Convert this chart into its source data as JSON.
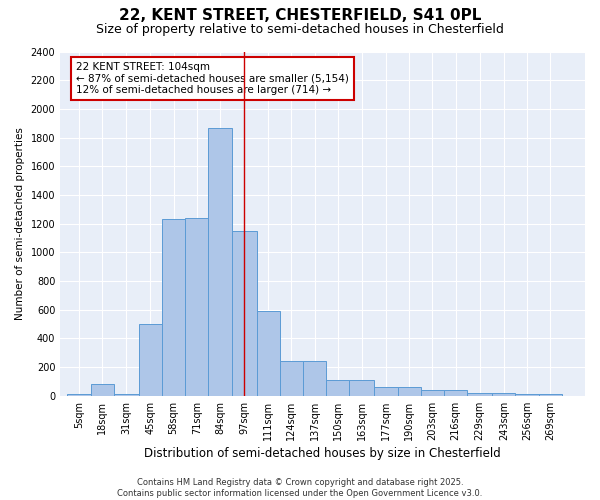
{
  "title1": "22, KENT STREET, CHESTERFIELD, S41 0PL",
  "title2": "Size of property relative to semi-detached houses in Chesterfield",
  "xlabel": "Distribution of semi-detached houses by size in Chesterfield",
  "ylabel": "Number of semi-detached properties",
  "bar_labels": [
    "5sqm",
    "18sqm",
    "31sqm",
    "45sqm",
    "58sqm",
    "71sqm",
    "84sqm",
    "97sqm",
    "111sqm",
    "124sqm",
    "137sqm",
    "150sqm",
    "163sqm",
    "177sqm",
    "190sqm",
    "203sqm",
    "216sqm",
    "229sqm",
    "243sqm",
    "256sqm",
    "269sqm"
  ],
  "bar_values": [
    15,
    80,
    10,
    500,
    1230,
    1240,
    1870,
    1150,
    590,
    240,
    240,
    110,
    110,
    60,
    60,
    40,
    40,
    20,
    20,
    10,
    10
  ],
  "bar_color": "#aec6e8",
  "bar_edge_color": "#5b9bd5",
  "background_color": "#e8eef8",
  "grid_color": "#ffffff",
  "annotation_line1": "22 KENT STREET: 104sqm",
  "annotation_line2": "← 87% of semi-detached houses are smaller (5,154)",
  "annotation_line3": "12% of semi-detached houses are larger (714) →",
  "annotation_box_color": "#ffffff",
  "annotation_box_edge_color": "#cc0000",
  "vline_color": "#cc0000",
  "vline_x_data": 104,
  "ylim": [
    0,
    2400
  ],
  "yticks": [
    0,
    200,
    400,
    600,
    800,
    1000,
    1200,
    1400,
    1600,
    1800,
    2000,
    2200,
    2400
  ],
  "bin_edges": [
    5,
    18,
    31,
    45,
    58,
    71,
    84,
    97,
    111,
    124,
    137,
    150,
    163,
    177,
    190,
    203,
    216,
    229,
    243,
    256,
    269,
    282
  ],
  "footer": "Contains HM Land Registry data © Crown copyright and database right 2025.\nContains public sector information licensed under the Open Government Licence v3.0.",
  "title1_fontsize": 11,
  "title2_fontsize": 9,
  "xlabel_fontsize": 8.5,
  "ylabel_fontsize": 7.5,
  "tick_fontsize": 7,
  "annotation_fontsize": 7.5,
  "footer_fontsize": 6
}
